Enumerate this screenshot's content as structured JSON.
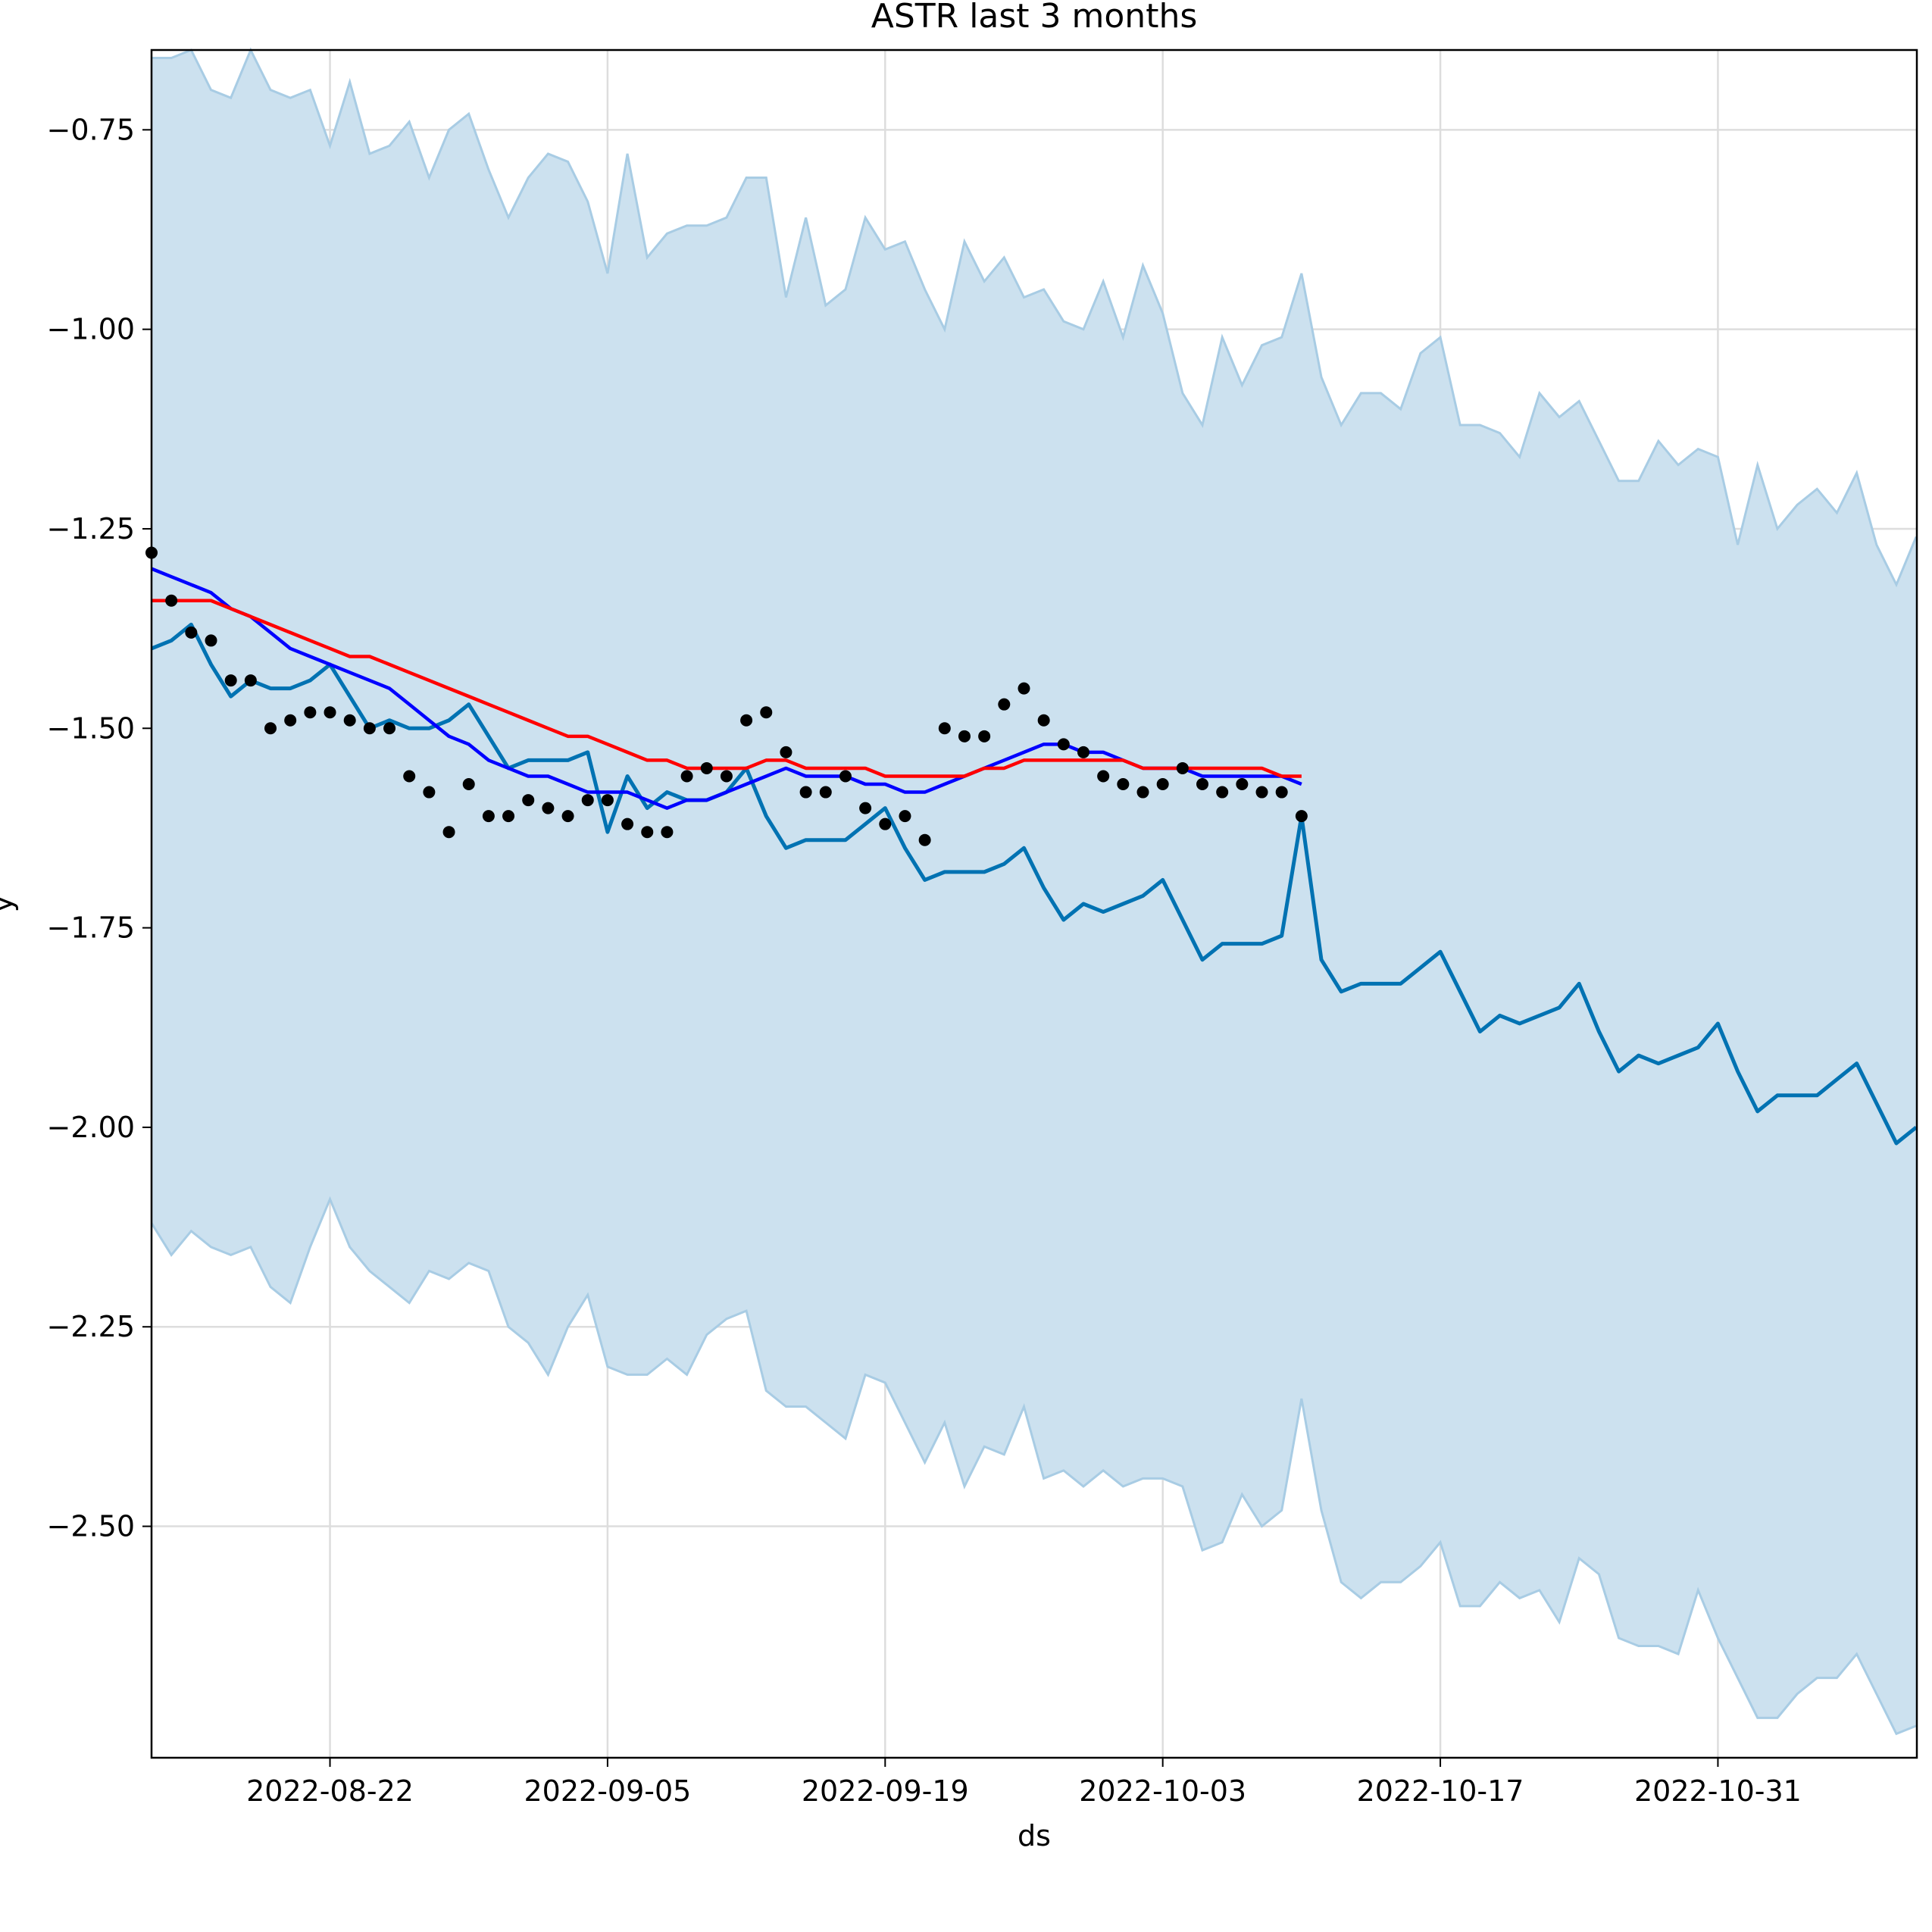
{
  "chart_data": {
    "type": "line",
    "title": "ASTR last 3 months",
    "xlabel": "ds",
    "ylabel": "y",
    "start_date": "2022-08-13",
    "x_ticks": [
      "2022-08-22",
      "2022-09-05",
      "2022-09-19",
      "2022-10-03",
      "2022-10-17",
      "2022-10-31"
    ],
    "y_ticks": [
      "−0.75",
      "−1.00",
      "−1.25",
      "−1.50",
      "−1.75",
      "−2.00",
      "−2.25",
      "−2.50"
    ],
    "ylim": [
      -2.79,
      -0.65
    ],
    "grid": true,
    "colors": {
      "band": "#cce1ef",
      "band_edge": "#a8cce4",
      "forecast": "#0072b2",
      "blue_line": "#0000ff",
      "red_line": "#ff0000",
      "points": "#000000",
      "grid": "#dddddd"
    },
    "series": [
      {
        "kind": "band_upper",
        "values": [
          -0.66,
          -0.66,
          -0.59,
          -0.7,
          -0.71,
          -0.65,
          -0.7,
          -0.71,
          -0.7,
          -0.77,
          -0.69,
          -0.78,
          -0.77,
          -0.74,
          -0.81,
          -0.75,
          -0.73,
          -0.8,
          -0.86,
          -0.81,
          -0.78,
          -0.79,
          -0.84,
          -0.93,
          -0.78,
          -0.91,
          -0.88,
          -0.87,
          -0.87,
          -0.86,
          -0.81,
          -0.81,
          -0.96,
          -0.86,
          -0.97,
          -0.95,
          -0.86,
          -0.9,
          -0.89,
          -0.95,
          -1.0,
          -0.89,
          -0.94,
          -0.91,
          -0.96,
          -0.95,
          -0.99,
          -1.0,
          -0.94,
          -1.01,
          -0.92,
          -0.98,
          -1.08,
          -1.12,
          -1.01,
          -1.07,
          -1.02,
          -1.01,
          -0.93,
          -1.06,
          -1.12,
          -1.08,
          -1.08,
          -1.1,
          -1.03,
          -1.01,
          -1.12,
          -1.12,
          -1.13,
          -1.16,
          -1.08,
          -1.11,
          -1.09,
          -1.14,
          -1.19,
          -1.19,
          -1.14,
          -1.17,
          -1.15,
          -1.16,
          -1.27,
          -1.17,
          -1.25,
          -1.22,
          -1.2,
          -1.23,
          -1.18,
          -1.27,
          -1.32,
          -1.26
        ]
      },
      {
        "kind": "band_lower",
        "values": [
          -2.12,
          -2.16,
          -2.13,
          -2.15,
          -2.16,
          -2.15,
          -2.2,
          -2.22,
          -2.15,
          -2.09,
          -2.15,
          -2.18,
          -2.2,
          -2.22,
          -2.18,
          -2.19,
          -2.17,
          -2.18,
          -2.25,
          -2.27,
          -2.31,
          -2.25,
          -2.21,
          -2.3,
          -2.31,
          -2.31,
          -2.29,
          -2.31,
          -2.26,
          -2.24,
          -2.23,
          -2.33,
          -2.35,
          -2.35,
          -2.37,
          -2.39,
          -2.31,
          -2.32,
          -2.37,
          -2.42,
          -2.37,
          -2.45,
          -2.4,
          -2.41,
          -2.35,
          -2.44,
          -2.43,
          -2.45,
          -2.43,
          -2.45,
          -2.44,
          -2.44,
          -2.45,
          -2.53,
          -2.52,
          -2.46,
          -2.5,
          -2.48,
          -2.34,
          -2.48,
          -2.57,
          -2.59,
          -2.57,
          -2.57,
          -2.55,
          -2.52,
          -2.6,
          -2.6,
          -2.57,
          -2.59,
          -2.58,
          -2.62,
          -2.54,
          -2.56,
          -2.64,
          -2.65,
          -2.65,
          -2.66,
          -2.58,
          -2.64,
          -2.69,
          -2.74,
          -2.74,
          -2.71,
          -2.69,
          -2.69,
          -2.66,
          -2.71,
          -2.76,
          -2.75
        ]
      },
      {
        "kind": "forecast",
        "values": [
          -1.4,
          -1.39,
          -1.37,
          -1.42,
          -1.46,
          -1.44,
          -1.45,
          -1.45,
          -1.44,
          -1.42,
          -1.46,
          -1.5,
          -1.49,
          -1.5,
          -1.5,
          -1.49,
          -1.47,
          -1.51,
          -1.55,
          -1.54,
          -1.54,
          -1.54,
          -1.53,
          -1.63,
          -1.56,
          -1.6,
          -1.58,
          -1.59,
          -1.59,
          -1.58,
          -1.55,
          -1.61,
          -1.65,
          -1.64,
          -1.64,
          -1.64,
          -1.62,
          -1.6,
          -1.65,
          -1.69,
          -1.68,
          -1.68,
          -1.68,
          -1.67,
          -1.65,
          -1.7,
          -1.74,
          -1.72,
          -1.73,
          -1.72,
          -1.71,
          -1.69,
          -1.74,
          -1.79,
          -1.77,
          -1.77,
          -1.77,
          -1.76,
          -1.61,
          -1.79,
          -1.83,
          -1.82,
          -1.82,
          -1.82,
          -1.8,
          -1.78,
          -1.83,
          -1.88,
          -1.86,
          -1.87,
          -1.86,
          -1.85,
          -1.82,
          -1.88,
          -1.93,
          -1.91,
          -1.92,
          -1.91,
          -1.9,
          -1.87,
          -1.93,
          -1.98,
          -1.96,
          -1.96,
          -1.96,
          -1.94,
          -1.92,
          -1.97,
          -2.02,
          -2.0
        ]
      },
      {
        "kind": "blue_line",
        "values": [
          -1.3,
          -1.31,
          -1.32,
          -1.33,
          -1.35,
          -1.36,
          -1.38,
          -1.4,
          -1.41,
          -1.42,
          -1.43,
          -1.44,
          -1.45,
          -1.47,
          -1.49,
          -1.51,
          -1.52,
          -1.54,
          -1.55,
          -1.56,
          -1.56,
          -1.57,
          -1.58,
          -1.58,
          -1.58,
          -1.59,
          -1.6,
          -1.59,
          -1.59,
          -1.58,
          -1.57,
          -1.56,
          -1.55,
          -1.56,
          -1.56,
          -1.56,
          -1.57,
          -1.57,
          -1.58,
          -1.58,
          -1.57,
          -1.56,
          -1.55,
          -1.54,
          -1.53,
          -1.52,
          -1.52,
          -1.53,
          -1.53,
          -1.54,
          -1.55,
          -1.55,
          -1.55,
          -1.56,
          -1.56,
          -1.56,
          -1.56,
          -1.56,
          -1.57
        ]
      },
      {
        "kind": "red_line",
        "values": [
          -1.34,
          -1.34,
          -1.34,
          -1.34,
          -1.35,
          -1.36,
          -1.37,
          -1.38,
          -1.39,
          -1.4,
          -1.41,
          -1.41,
          -1.42,
          -1.43,
          -1.44,
          -1.45,
          -1.46,
          -1.47,
          -1.48,
          -1.49,
          -1.5,
          -1.51,
          -1.51,
          -1.52,
          -1.53,
          -1.54,
          -1.54,
          -1.55,
          -1.55,
          -1.55,
          -1.55,
          -1.54,
          -1.54,
          -1.55,
          -1.55,
          -1.55,
          -1.55,
          -1.56,
          -1.56,
          -1.56,
          -1.56,
          -1.56,
          -1.55,
          -1.55,
          -1.54,
          -1.54,
          -1.54,
          -1.54,
          -1.54,
          -1.54,
          -1.55,
          -1.55,
          -1.55,
          -1.55,
          -1.55,
          -1.55,
          -1.55,
          -1.56,
          -1.56
        ]
      },
      {
        "kind": "points",
        "values": [
          -1.28,
          -1.34,
          -1.38,
          -1.39,
          -1.44,
          -1.44,
          -1.5,
          -1.49,
          -1.48,
          -1.48,
          -1.49,
          -1.5,
          -1.5,
          -1.56,
          -1.58,
          -1.63,
          -1.57,
          -1.61,
          -1.61,
          -1.59,
          -1.6,
          -1.61,
          -1.59,
          -1.59,
          -1.62,
          -1.63,
          -1.63,
          -1.56,
          -1.55,
          -1.56,
          -1.49,
          -1.48,
          -1.53,
          -1.58,
          -1.58,
          -1.56,
          -1.6,
          -1.62,
          -1.61,
          -1.64,
          -1.5,
          -1.51,
          -1.51,
          -1.47,
          -1.45,
          -1.49,
          -1.52,
          -1.53,
          -1.56,
          -1.57,
          -1.58,
          -1.57,
          -1.55,
          -1.57,
          -1.58,
          -1.57,
          -1.58,
          -1.58,
          -1.61
        ]
      }
    ]
  }
}
